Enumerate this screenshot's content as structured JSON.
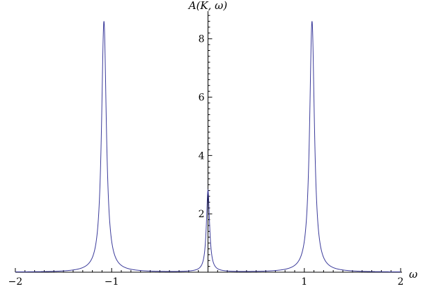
{
  "chart_data": {
    "type": "line",
    "ylabel": "A(K, ω)",
    "xlabel": "ω",
    "xlim": [
      -2,
      2
    ],
    "ylim": [
      0,
      8.9
    ],
    "x_ticks": [
      "−2",
      "−1",
      "0",
      "1",
      "2"
    ],
    "x_tick_values": [
      -2,
      -1,
      0,
      1,
      2
    ],
    "y_ticks": [
      "2",
      "4",
      "6",
      "8"
    ],
    "y_tick_values": [
      2,
      4,
      6,
      8
    ],
    "grid": false,
    "line_color": "#3a3a9a",
    "series": [
      {
        "description": "Lorentzian peaks",
        "peaks": [
          {
            "center": -1.08,
            "height": 8.6,
            "half_width": 0.03
          },
          {
            "center": 0.0,
            "height": 2.8,
            "half_width": 0.02
          },
          {
            "center": 1.08,
            "height": 8.6,
            "half_width": 0.03
          }
        ]
      }
    ]
  }
}
